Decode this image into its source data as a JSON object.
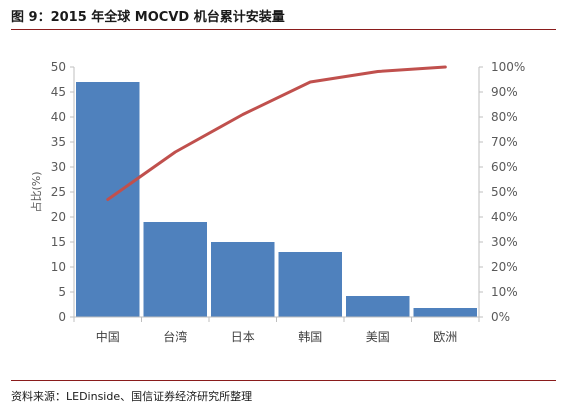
{
  "figure": {
    "title": "图 9：2015 年全球 MOCVD 机台累计安装量",
    "source": "资料来源：LEDinside、国信证券经济研究所整理"
  },
  "chart_data": {
    "type": "bar",
    "categories": [
      "中国",
      "台湾",
      "日本",
      "韩国",
      "美国",
      "欧洲"
    ],
    "series": [
      {
        "type": "bar",
        "axis": "left",
        "values": [
          47,
          19,
          15,
          13,
          4.2,
          1.8
        ],
        "color": "#4f81bd"
      },
      {
        "type": "line",
        "axis": "right",
        "values": [
          47,
          66,
          81,
          94,
          98.2,
          100
        ],
        "color": "#c0504d"
      }
    ],
    "ylabel": "占比(%)",
    "ylim": [
      0,
      50
    ],
    "yticks": [
      0,
      5,
      10,
      15,
      20,
      25,
      30,
      35,
      40,
      45,
      50
    ],
    "y2lim": [
      0,
      100
    ],
    "y2ticks": [
      "0%",
      "10%",
      "20%",
      "30%",
      "40%",
      "50%",
      "60%",
      "70%",
      "80%",
      "90%",
      "100%"
    ],
    "grid": false,
    "legend": "none"
  }
}
